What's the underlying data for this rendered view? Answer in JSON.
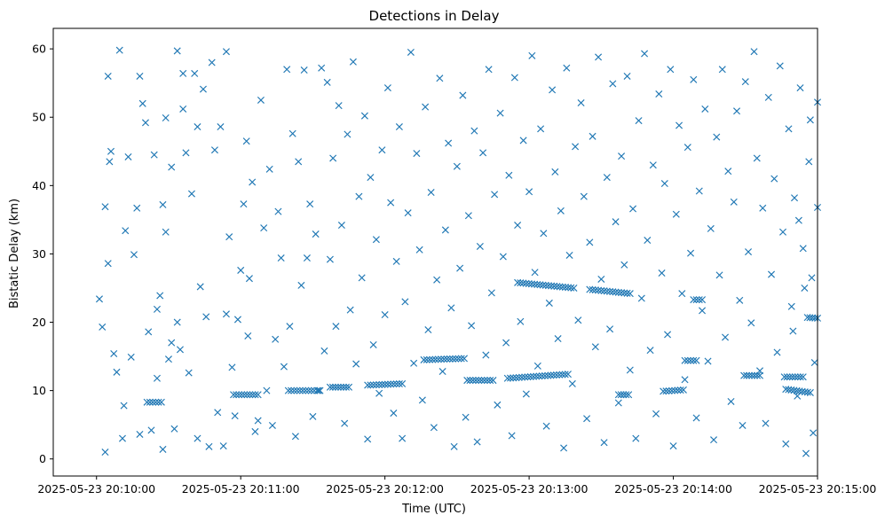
{
  "chart_data": {
    "type": "scatter",
    "title": "Detections in Delay",
    "xlabel": "Time (UTC)",
    "ylabel": "Bistatic Delay (km)",
    "marker": "x",
    "color": "#1f77b4",
    "xlim": [
      -0.3,
      5.0
    ],
    "ylim": [
      -2.5,
      63
    ],
    "xticks": [
      {
        "value": 0,
        "label": "2025-05-23 20:10:00"
      },
      {
        "value": 1,
        "label": "2025-05-23 20:11:00"
      },
      {
        "value": 2,
        "label": "2025-05-23 20:12:00"
      },
      {
        "value": 3,
        "label": "2025-05-23 20:13:00"
      },
      {
        "value": 4,
        "label": "2025-05-23 20:14:00"
      },
      {
        "value": 5,
        "label": "2025-05-23 20:15:00"
      }
    ],
    "yticks": [
      0,
      10,
      20,
      30,
      40,
      50,
      60
    ],
    "x_units": "minutes after 2025-05-23 20:10:00 UTC",
    "tracks": [
      {
        "x_start": 0.35,
        "x_end": 0.45,
        "y_start": 8.3,
        "y_end": 8.3
      },
      {
        "x_start": 0.95,
        "x_end": 1.12,
        "y_start": 9.4,
        "y_end": 9.4
      },
      {
        "x_start": 1.33,
        "x_end": 1.55,
        "y_start": 10.0,
        "y_end": 10.0
      },
      {
        "x_start": 1.62,
        "x_end": 1.75,
        "y_start": 10.5,
        "y_end": 10.5
      },
      {
        "x_start": 1.88,
        "x_end": 2.12,
        "y_start": 10.8,
        "y_end": 11.0
      },
      {
        "x_start": 2.27,
        "x_end": 2.55,
        "y_start": 14.5,
        "y_end": 14.7
      },
      {
        "x_start": 2.57,
        "x_end": 2.75,
        "y_start": 11.5,
        "y_end": 11.5
      },
      {
        "x_start": 2.85,
        "x_end": 3.27,
        "y_start": 11.8,
        "y_end": 12.4
      },
      {
        "x_start": 2.92,
        "x_end": 3.31,
        "y_start": 25.8,
        "y_end": 25.0
      },
      {
        "x_start": 3.42,
        "x_end": 3.7,
        "y_start": 24.8,
        "y_end": 24.2
      },
      {
        "x_start": 3.62,
        "x_end": 3.69,
        "y_start": 9.4,
        "y_end": 9.4
      },
      {
        "x_start": 3.93,
        "x_end": 4.07,
        "y_start": 9.9,
        "y_end": 10.1
      },
      {
        "x_start": 4.08,
        "x_end": 4.16,
        "y_start": 14.4,
        "y_end": 14.4
      },
      {
        "x_start": 4.14,
        "x_end": 4.2,
        "y_start": 23.3,
        "y_end": 23.3
      },
      {
        "x_start": 4.49,
        "x_end": 4.6,
        "y_start": 12.2,
        "y_end": 12.2
      },
      {
        "x_start": 4.77,
        "x_end": 4.9,
        "y_start": 12.0,
        "y_end": 12.0
      },
      {
        "x_start": 4.78,
        "x_end": 4.95,
        "y_start": 10.2,
        "y_end": 9.7
      },
      {
        "x_start": 4.93,
        "x_end": 5.0,
        "y_start": 20.7,
        "y_end": 20.6
      }
    ],
    "points": [
      [
        0.02,
        23.4
      ],
      [
        0.04,
        19.3
      ],
      [
        0.06,
        1.0
      ],
      [
        0.06,
        36.9
      ],
      [
        0.08,
        28.6
      ],
      [
        0.08,
        56.0
      ],
      [
        0.09,
        43.5
      ],
      [
        0.1,
        45.0
      ],
      [
        0.12,
        15.4
      ],
      [
        0.14,
        12.7
      ],
      [
        0.16,
        59.8
      ],
      [
        0.18,
        3.0
      ],
      [
        0.19,
        7.8
      ],
      [
        0.2,
        33.4
      ],
      [
        0.22,
        44.2
      ],
      [
        0.24,
        14.9
      ],
      [
        0.26,
        29.9
      ],
      [
        0.28,
        36.7
      ],
      [
        0.3,
        3.6
      ],
      [
        0.3,
        56.0
      ],
      [
        0.32,
        52.0
      ],
      [
        0.34,
        49.2
      ],
      [
        0.36,
        18.6
      ],
      [
        0.38,
        4.2
      ],
      [
        0.4,
        44.5
      ],
      [
        0.42,
        21.9
      ],
      [
        0.42,
        11.8
      ],
      [
        0.44,
        23.9
      ],
      [
        0.46,
        1.4
      ],
      [
        0.46,
        37.2
      ],
      [
        0.48,
        33.2
      ],
      [
        0.48,
        49.9
      ],
      [
        0.5,
        14.6
      ],
      [
        0.52,
        17.0
      ],
      [
        0.52,
        42.7
      ],
      [
        0.54,
        4.4
      ],
      [
        0.56,
        59.7
      ],
      [
        0.56,
        20.0
      ],
      [
        0.58,
        16.0
      ],
      [
        0.6,
        56.4
      ],
      [
        0.6,
        51.2
      ],
      [
        0.62,
        44.8
      ],
      [
        0.64,
        12.6
      ],
      [
        0.66,
        38.8
      ],
      [
        0.68,
        56.4
      ],
      [
        0.7,
        3.0
      ],
      [
        0.7,
        48.6
      ],
      [
        0.72,
        25.2
      ],
      [
        0.74,
        54.1
      ],
      [
        0.76,
        20.8
      ],
      [
        0.78,
        1.8
      ],
      [
        0.8,
        58.0
      ],
      [
        0.82,
        45.2
      ],
      [
        0.84,
        6.8
      ],
      [
        0.86,
        48.6
      ],
      [
        0.88,
        1.9
      ],
      [
        0.9,
        59.6
      ],
      [
        0.9,
        21.2
      ],
      [
        0.92,
        32.5
      ],
      [
        0.94,
        13.4
      ],
      [
        0.96,
        6.3
      ],
      [
        0.98,
        20.4
      ],
      [
        1.0,
        27.6
      ],
      [
        1.02,
        37.3
      ],
      [
        1.04,
        46.5
      ],
      [
        1.05,
        18.0
      ],
      [
        1.06,
        26.4
      ],
      [
        1.08,
        40.5
      ],
      [
        1.1,
        4.0
      ],
      [
        1.12,
        5.6
      ],
      [
        1.14,
        52.5
      ],
      [
        1.16,
        33.8
      ],
      [
        1.18,
        10.0
      ],
      [
        1.2,
        42.4
      ],
      [
        1.22,
        4.9
      ],
      [
        1.24,
        17.5
      ],
      [
        1.26,
        36.2
      ],
      [
        1.28,
        29.4
      ],
      [
        1.3,
        13.5
      ],
      [
        1.32,
        57.0
      ],
      [
        1.34,
        19.4
      ],
      [
        1.36,
        47.6
      ],
      [
        1.38,
        3.3
      ],
      [
        1.4,
        43.5
      ],
      [
        1.42,
        25.4
      ],
      [
        1.44,
        56.9
      ],
      [
        1.46,
        29.4
      ],
      [
        1.48,
        37.3
      ],
      [
        1.5,
        6.2
      ],
      [
        1.52,
        32.9
      ],
      [
        1.54,
        10.0
      ],
      [
        1.56,
        57.2
      ],
      [
        1.58,
        15.8
      ],
      [
        1.6,
        55.1
      ],
      [
        1.62,
        29.2
      ],
      [
        1.64,
        44.0
      ],
      [
        1.66,
        19.4
      ],
      [
        1.68,
        51.7
      ],
      [
        1.7,
        34.2
      ],
      [
        1.72,
        5.2
      ],
      [
        1.74,
        47.5
      ],
      [
        1.76,
        21.8
      ],
      [
        1.78,
        58.1
      ],
      [
        1.8,
        13.9
      ],
      [
        1.82,
        38.4
      ],
      [
        1.84,
        26.5
      ],
      [
        1.86,
        50.2
      ],
      [
        1.88,
        2.9
      ],
      [
        1.9,
        41.2
      ],
      [
        1.92,
        16.7
      ],
      [
        1.94,
        32.1
      ],
      [
        1.96,
        9.6
      ],
      [
        1.98,
        45.2
      ],
      [
        2.0,
        21.1
      ],
      [
        2.02,
        54.3
      ],
      [
        2.04,
        37.5
      ],
      [
        2.06,
        6.7
      ],
      [
        2.08,
        28.9
      ],
      [
        2.1,
        48.6
      ],
      [
        2.12,
        3.0
      ],
      [
        2.14,
        23.0
      ],
      [
        2.16,
        36.0
      ],
      [
        2.18,
        59.5
      ],
      [
        2.2,
        14.0
      ],
      [
        2.22,
        44.7
      ],
      [
        2.24,
        30.6
      ],
      [
        2.26,
        8.6
      ],
      [
        2.28,
        51.5
      ],
      [
        2.3,
        18.9
      ],
      [
        2.32,
        39.0
      ],
      [
        2.34,
        4.6
      ],
      [
        2.36,
        26.2
      ],
      [
        2.38,
        55.7
      ],
      [
        2.4,
        12.8
      ],
      [
        2.42,
        33.5
      ],
      [
        2.44,
        46.2
      ],
      [
        2.46,
        22.1
      ],
      [
        2.48,
        1.8
      ],
      [
        2.5,
        42.8
      ],
      [
        2.52,
        27.9
      ],
      [
        2.54,
        53.2
      ],
      [
        2.56,
        6.1
      ],
      [
        2.58,
        35.6
      ],
      [
        2.6,
        19.5
      ],
      [
        2.62,
        48.0
      ],
      [
        2.64,
        2.5
      ],
      [
        2.66,
        31.1
      ],
      [
        2.68,
        44.8
      ],
      [
        2.7,
        15.2
      ],
      [
        2.72,
        57.0
      ],
      [
        2.74,
        24.3
      ],
      [
        2.76,
        38.7
      ],
      [
        2.78,
        7.9
      ],
      [
        2.8,
        50.6
      ],
      [
        2.82,
        29.6
      ],
      [
        2.84,
        17.0
      ],
      [
        2.86,
        41.5
      ],
      [
        2.88,
        3.4
      ],
      [
        2.9,
        55.8
      ],
      [
        2.92,
        34.2
      ],
      [
        2.94,
        20.1
      ],
      [
        2.96,
        46.6
      ],
      [
        2.98,
        9.5
      ],
      [
        3.0,
        39.1
      ],
      [
        3.02,
        59.0
      ],
      [
        3.04,
        27.3
      ],
      [
        3.06,
        13.6
      ],
      [
        3.08,
        48.3
      ],
      [
        3.1,
        33.0
      ],
      [
        3.12,
        4.8
      ],
      [
        3.14,
        22.8
      ],
      [
        3.16,
        54.0
      ],
      [
        3.18,
        42.0
      ],
      [
        3.2,
        17.6
      ],
      [
        3.22,
        36.3
      ],
      [
        3.24,
        1.6
      ],
      [
        3.26,
        57.2
      ],
      [
        3.28,
        29.8
      ],
      [
        3.3,
        11.0
      ],
      [
        3.32,
        45.7
      ],
      [
        3.34,
        20.3
      ],
      [
        3.36,
        52.1
      ],
      [
        3.38,
        38.4
      ],
      [
        3.4,
        5.9
      ],
      [
        3.42,
        31.7
      ],
      [
        3.44,
        47.2
      ],
      [
        3.46,
        16.4
      ],
      [
        3.48,
        58.8
      ],
      [
        3.5,
        26.3
      ],
      [
        3.52,
        2.4
      ],
      [
        3.54,
        41.2
      ],
      [
        3.56,
        19.0
      ],
      [
        3.58,
        54.9
      ],
      [
        3.6,
        34.7
      ],
      [
        3.62,
        8.2
      ],
      [
        3.64,
        44.3
      ],
      [
        3.66,
        28.4
      ],
      [
        3.68,
        56.0
      ],
      [
        3.7,
        13.0
      ],
      [
        3.72,
        36.6
      ],
      [
        3.74,
        3.0
      ],
      [
        3.76,
        49.5
      ],
      [
        3.78,
        23.5
      ],
      [
        3.8,
        59.3
      ],
      [
        3.82,
        32.0
      ],
      [
        3.84,
        15.9
      ],
      [
        3.86,
        43.0
      ],
      [
        3.88,
        6.6
      ],
      [
        3.9,
        53.4
      ],
      [
        3.92,
        27.2
      ],
      [
        3.94,
        40.3
      ],
      [
        3.96,
        18.2
      ],
      [
        3.98,
        57.0
      ],
      [
        4.0,
        1.9
      ],
      [
        4.02,
        35.8
      ],
      [
        4.04,
        48.8
      ],
      [
        4.06,
        24.2
      ],
      [
        4.08,
        11.6
      ],
      [
        4.1,
        45.6
      ],
      [
        4.12,
        30.1
      ],
      [
        4.14,
        55.5
      ],
      [
        4.16,
        6.0
      ],
      [
        4.18,
        39.2
      ],
      [
        4.2,
        21.7
      ],
      [
        4.22,
        51.2
      ],
      [
        4.24,
        14.3
      ],
      [
        4.26,
        33.7
      ],
      [
        4.28,
        2.8
      ],
      [
        4.3,
        47.1
      ],
      [
        4.32,
        26.9
      ],
      [
        4.34,
        57.0
      ],
      [
        4.36,
        17.8
      ],
      [
        4.38,
        42.1
      ],
      [
        4.4,
        8.4
      ],
      [
        4.42,
        37.6
      ],
      [
        4.44,
        50.9
      ],
      [
        4.46,
        23.2
      ],
      [
        4.48,
        4.9
      ],
      [
        4.5,
        55.2
      ],
      [
        4.52,
        30.3
      ],
      [
        4.54,
        19.9
      ],
      [
        4.56,
        59.6
      ],
      [
        4.58,
        44.0
      ],
      [
        4.6,
        12.9
      ],
      [
        4.62,
        36.7
      ],
      [
        4.64,
        5.2
      ],
      [
        4.66,
        52.9
      ],
      [
        4.68,
        27.0
      ],
      [
        4.7,
        41.0
      ],
      [
        4.72,
        15.6
      ],
      [
        4.74,
        57.5
      ],
      [
        4.76,
        33.2
      ],
      [
        4.78,
        2.2
      ],
      [
        4.8,
        48.3
      ],
      [
        4.82,
        22.3
      ],
      [
        4.84,
        38.2
      ],
      [
        4.86,
        9.2
      ],
      [
        4.88,
        54.3
      ],
      [
        4.9,
        30.8
      ],
      [
        4.92,
        0.8
      ],
      [
        4.94,
        43.5
      ],
      [
        4.96,
        26.5
      ],
      [
        4.98,
        14.1
      ],
      [
        5.0,
        52.2
      ],
      [
        5.0,
        36.8
      ],
      [
        4.97,
        3.8
      ],
      [
        4.95,
        49.6
      ],
      [
        4.91,
        25.0
      ],
      [
        4.87,
        34.9
      ],
      [
        4.83,
        18.7
      ]
    ]
  }
}
